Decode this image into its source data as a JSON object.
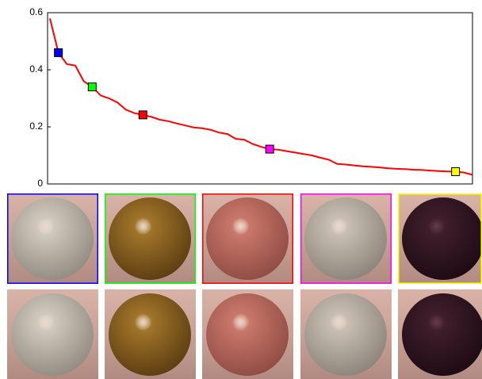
{
  "chart_data": {
    "type": "line",
    "color": "#ff0000",
    "values": [
      0.58,
      0.46,
      0.42,
      0.415,
      0.36,
      0.34,
      0.31,
      0.3,
      0.285,
      0.26,
      0.248,
      0.242,
      0.235,
      0.225,
      0.22,
      0.212,
      0.205,
      0.198,
      0.195,
      0.19,
      0.18,
      0.175,
      0.158,
      0.155,
      0.14,
      0.13,
      0.122,
      0.12,
      0.115,
      0.11,
      0.105,
      0.1,
      0.092,
      0.085,
      0.07,
      0.068,
      0.065,
      0.062,
      0.06,
      0.058,
      0.055,
      0.053,
      0.052,
      0.05,
      0.049,
      0.047,
      0.045,
      0.044,
      0.043,
      0.04,
      0.032
    ],
    "markers": {
      "indices": [
        1,
        5,
        11,
        26,
        48
      ],
      "colors": [
        "#0000ff",
        "#00ff00",
        "#ff0000",
        "#ff00ff",
        "#ffff00"
      ]
    },
    "ylim": [
      0,
      0.6
    ],
    "yticks": [
      0,
      0.2,
      0.4,
      0.6
    ],
    "grid": false
  }
}
